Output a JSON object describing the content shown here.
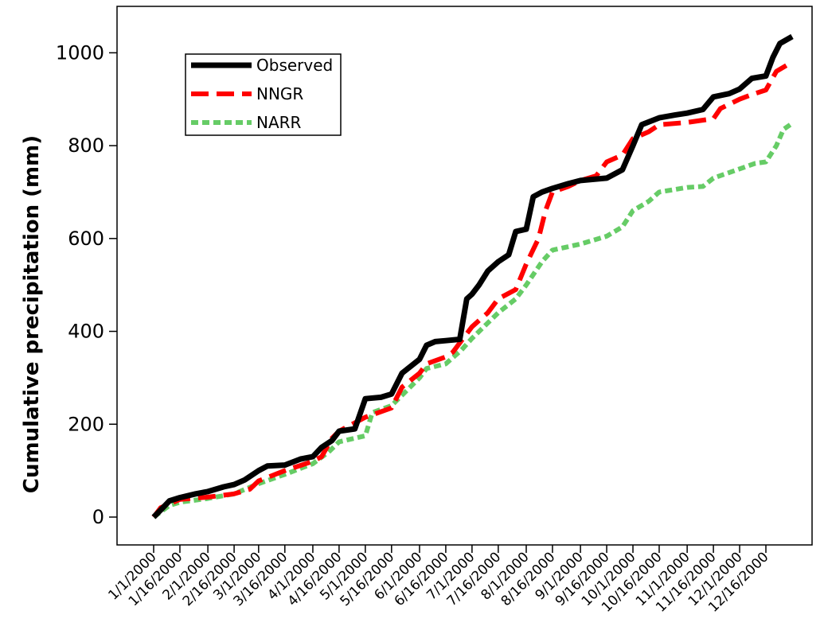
{
  "chart_data": {
    "type": "line",
    "title": "",
    "xlabel": "",
    "ylabel": "Cumulative precipitation (mm)",
    "ylim": [
      -60,
      1100
    ],
    "yticks": [
      0,
      200,
      400,
      600,
      800,
      1000
    ],
    "xtick_labels": [
      "1/1/2000",
      "1/16/2000",
      "2/1/2000",
      "2/16/2000",
      "3/1/2000",
      "3/16/2000",
      "4/1/2000",
      "4/16/2000",
      "5/1/2000",
      "5/16/2000",
      "6/1/2000",
      "6/16/2000",
      "7/1/2000",
      "7/16/2000",
      "8/1/2000",
      "8/16/2000",
      "9/1/2000",
      "9/16/2000",
      "10/1/2000",
      "10/16/2000",
      "11/1/2000",
      "11/16/2000",
      "12/1/2000",
      "12/16/2000"
    ],
    "legend_position": "top-left",
    "grid": false,
    "series": [
      {
        "name": "Observed",
        "color": "#000000",
        "style": "solid",
        "points": [
          [
            "1/1/2000",
            0
          ],
          [
            "1/5/2000",
            15
          ],
          [
            "1/10/2000",
            35
          ],
          [
            "1/16/2000",
            42
          ],
          [
            "1/25/2000",
            50
          ],
          [
            "2/1/2000",
            55
          ],
          [
            "2/10/2000",
            65
          ],
          [
            "2/16/2000",
            70
          ],
          [
            "2/22/2000",
            80
          ],
          [
            "3/1/2000",
            100
          ],
          [
            "3/6/2000",
            110
          ],
          [
            "3/16/2000",
            112
          ],
          [
            "3/25/2000",
            125
          ],
          [
            "4/1/2000",
            130
          ],
          [
            "4/6/2000",
            150
          ],
          [
            "4/12/2000",
            165
          ],
          [
            "4/16/2000",
            185
          ],
          [
            "4/25/2000",
            190
          ],
          [
            "5/1/2000",
            255
          ],
          [
            "5/10/2000",
            258
          ],
          [
            "5/16/2000",
            265
          ],
          [
            "5/22/2000",
            310
          ],
          [
            "6/1/2000",
            340
          ],
          [
            "6/5/2000",
            370
          ],
          [
            "6/10/2000",
            378
          ],
          [
            "6/16/2000",
            380
          ],
          [
            "6/24/2000",
            383
          ],
          [
            "6/28/2000",
            470
          ],
          [
            "7/1/2000",
            480
          ],
          [
            "7/5/2000",
            500
          ],
          [
            "7/10/2000",
            530
          ],
          [
            "7/16/2000",
            550
          ],
          [
            "7/22/2000",
            565
          ],
          [
            "7/26/2000",
            615
          ],
          [
            "8/1/2000",
            620
          ],
          [
            "8/5/2000",
            690
          ],
          [
            "8/10/2000",
            700
          ],
          [
            "8/16/2000",
            708
          ],
          [
            "8/25/2000",
            718
          ],
          [
            "9/1/2000",
            725
          ],
          [
            "9/16/2000",
            730
          ],
          [
            "9/25/2000",
            748
          ],
          [
            "10/1/2000",
            800
          ],
          [
            "10/6/2000",
            845
          ],
          [
            "10/16/2000",
            860
          ],
          [
            "10/25/2000",
            866
          ],
          [
            "11/1/2000",
            870
          ],
          [
            "11/10/2000",
            878
          ],
          [
            "11/16/2000",
            905
          ],
          [
            "11/25/2000",
            912
          ],
          [
            "12/1/2000",
            922
          ],
          [
            "12/8/2000",
            945
          ],
          [
            "12/16/2000",
            950
          ],
          [
            "12/20/2000",
            990
          ],
          [
            "12/24/2000",
            1020
          ],
          [
            "12/31/2000",
            1035
          ]
        ]
      },
      {
        "name": "NNGR",
        "color": "#ff0000",
        "style": "dashed",
        "points": [
          [
            "1/1/2000",
            0
          ],
          [
            "1/5/2000",
            20
          ],
          [
            "1/16/2000",
            38
          ],
          [
            "2/1/2000",
            43
          ],
          [
            "2/16/2000",
            50
          ],
          [
            "2/25/2000",
            60
          ],
          [
            "3/1/2000",
            78
          ],
          [
            "3/16/2000",
            100
          ],
          [
            "4/1/2000",
            120
          ],
          [
            "4/6/2000",
            130
          ],
          [
            "4/12/2000",
            170
          ],
          [
            "4/16/2000",
            185
          ],
          [
            "5/1/2000",
            215
          ],
          [
            "5/16/2000",
            235
          ],
          [
            "5/22/2000",
            280
          ],
          [
            "6/1/2000",
            310
          ],
          [
            "6/5/2000",
            330
          ],
          [
            "6/16/2000",
            345
          ],
          [
            "6/20/2000",
            355
          ],
          [
            "7/1/2000",
            410
          ],
          [
            "7/10/2000",
            440
          ],
          [
            "7/16/2000",
            470
          ],
          [
            "7/26/2000",
            490
          ],
          [
            "8/1/2000",
            545
          ],
          [
            "8/8/2000",
            600
          ],
          [
            "8/12/2000",
            660
          ],
          [
            "8/16/2000",
            700
          ],
          [
            "8/25/2000",
            712
          ],
          [
            "9/1/2000",
            725
          ],
          [
            "9/10/2000",
            735
          ],
          [
            "9/16/2000",
            765
          ],
          [
            "9/25/2000",
            780
          ],
          [
            "10/1/2000",
            815
          ],
          [
            "10/10/2000",
            830
          ],
          [
            "10/16/2000",
            845
          ],
          [
            "11/1/2000",
            850
          ],
          [
            "11/16/2000",
            858
          ],
          [
            "11/20/2000",
            880
          ],
          [
            "12/1/2000",
            900
          ],
          [
            "12/8/2000",
            910
          ],
          [
            "12/16/2000",
            920
          ],
          [
            "12/22/2000",
            960
          ],
          [
            "12/31/2000",
            980
          ]
        ]
      },
      {
        "name": "NARR",
        "color": "#66cc66",
        "style": "dotted",
        "points": [
          [
            "1/1/2000",
            0
          ],
          [
            "1/10/2000",
            25
          ],
          [
            "1/16/2000",
            32
          ],
          [
            "2/1/2000",
            40
          ],
          [
            "2/16/2000",
            50
          ],
          [
            "3/1/2000",
            72
          ],
          [
            "3/16/2000",
            92
          ],
          [
            "4/1/2000",
            115
          ],
          [
            "4/10/2000",
            140
          ],
          [
            "4/16/2000",
            162
          ],
          [
            "5/1/2000",
            175
          ],
          [
            "5/5/2000",
            225
          ],
          [
            "5/16/2000",
            240
          ],
          [
            "6/1/2000",
            300
          ],
          [
            "6/5/2000",
            320
          ],
          [
            "6/16/2000",
            330
          ],
          [
            "6/25/2000",
            360
          ],
          [
            "7/1/2000",
            385
          ],
          [
            "7/16/2000",
            440
          ],
          [
            "7/26/2000",
            470
          ],
          [
            "8/1/2000",
            500
          ],
          [
            "8/10/2000",
            550
          ],
          [
            "8/16/2000",
            575
          ],
          [
            "9/1/2000",
            588
          ],
          [
            "9/16/2000",
            605
          ],
          [
            "9/25/2000",
            625
          ],
          [
            "10/1/2000",
            660
          ],
          [
            "10/10/2000",
            680
          ],
          [
            "10/16/2000",
            700
          ],
          [
            "11/1/2000",
            710
          ],
          [
            "11/10/2000",
            712
          ],
          [
            "11/16/2000",
            730
          ],
          [
            "12/1/2000",
            750
          ],
          [
            "12/10/2000",
            762
          ],
          [
            "12/16/2000",
            765
          ],
          [
            "12/22/2000",
            800
          ],
          [
            "12/26/2000",
            835
          ],
          [
            "12/31/2000",
            848
          ]
        ]
      }
    ]
  }
}
